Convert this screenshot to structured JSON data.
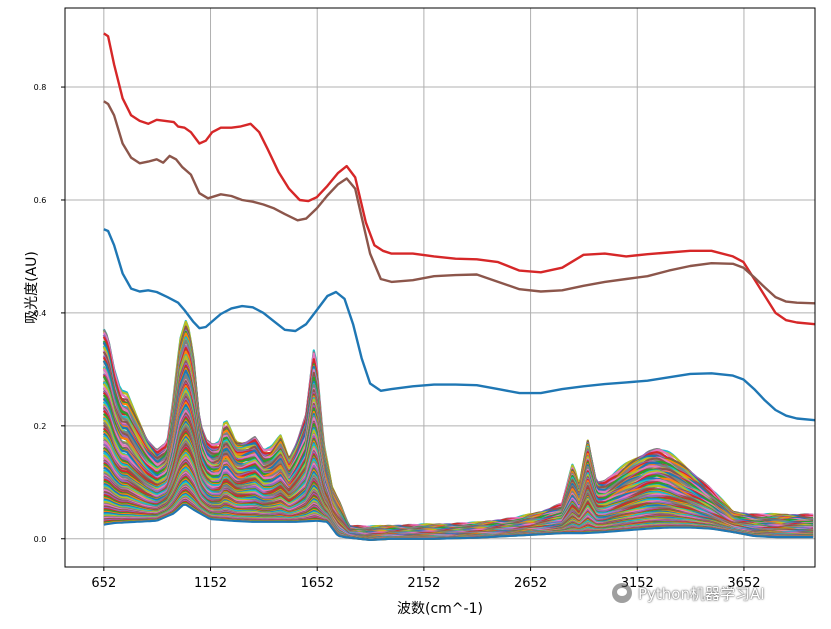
{
  "chart_data": {
    "type": "line",
    "title": "",
    "xlabel": "波数(cm^-1)",
    "ylabel": "吸光度(AU)",
    "xlim": [
      470,
      3985
    ],
    "ylim": [
      -0.05,
      0.94
    ],
    "xticks": [
      652,
      1152,
      1652,
      2152,
      2652,
      3152,
      3652
    ],
    "xtick_labels": [
      "652",
      "1152",
      "1652",
      "2152",
      "2652",
      "3152",
      "3652"
    ],
    "yticks": [
      0.0,
      0.2,
      0.4,
      0.6,
      0.8
    ],
    "ytick_labels": [
      "0.0",
      "0.2",
      "0.4",
      "0.6",
      "0.8"
    ],
    "grid": true,
    "legend": "none",
    "series": [
      {
        "color": "#d62728",
        "points": [
          [
            652,
            0.895
          ],
          [
            672,
            0.89
          ],
          [
            700,
            0.84
          ],
          [
            740,
            0.78
          ],
          [
            780,
            0.75
          ],
          [
            820,
            0.74
          ],
          [
            860,
            0.735
          ],
          [
            900,
            0.742
          ],
          [
            940,
            0.74
          ],
          [
            980,
            0.738
          ],
          [
            1000,
            0.73
          ],
          [
            1030,
            0.728
          ],
          [
            1060,
            0.72
          ],
          [
            1100,
            0.7
          ],
          [
            1130,
            0.705
          ],
          [
            1160,
            0.72
          ],
          [
            1200,
            0.728
          ],
          [
            1250,
            0.728
          ],
          [
            1290,
            0.73
          ],
          [
            1340,
            0.735
          ],
          [
            1380,
            0.72
          ],
          [
            1420,
            0.69
          ],
          [
            1470,
            0.65
          ],
          [
            1520,
            0.62
          ],
          [
            1570,
            0.6
          ],
          [
            1610,
            0.598
          ],
          [
            1650,
            0.605
          ],
          [
            1700,
            0.625
          ],
          [
            1750,
            0.648
          ],
          [
            1790,
            0.66
          ],
          [
            1830,
            0.64
          ],
          [
            1880,
            0.56
          ],
          [
            1920,
            0.52
          ],
          [
            1960,
            0.51
          ],
          [
            2000,
            0.505
          ],
          [
            2100,
            0.505
          ],
          [
            2200,
            0.5
          ],
          [
            2300,
            0.496
          ],
          [
            2400,
            0.495
          ],
          [
            2500,
            0.49
          ],
          [
            2600,
            0.475
          ],
          [
            2700,
            0.472
          ],
          [
            2800,
            0.48
          ],
          [
            2900,
            0.503
          ],
          [
            3000,
            0.505
          ],
          [
            3100,
            0.5
          ],
          [
            3200,
            0.504
          ],
          [
            3300,
            0.507
          ],
          [
            3400,
            0.51
          ],
          [
            3500,
            0.51
          ],
          [
            3600,
            0.5
          ],
          [
            3650,
            0.49
          ],
          [
            3700,
            0.46
          ],
          [
            3750,
            0.43
          ],
          [
            3800,
            0.4
          ],
          [
            3850,
            0.387
          ],
          [
            3900,
            0.383
          ],
          [
            3985,
            0.38
          ]
        ]
      },
      {
        "color": "#8c564b",
        "points": [
          [
            652,
            0.775
          ],
          [
            672,
            0.77
          ],
          [
            700,
            0.75
          ],
          [
            740,
            0.7
          ],
          [
            780,
            0.675
          ],
          [
            820,
            0.665
          ],
          [
            860,
            0.668
          ],
          [
            900,
            0.672
          ],
          [
            930,
            0.666
          ],
          [
            960,
            0.678
          ],
          [
            990,
            0.672
          ],
          [
            1020,
            0.658
          ],
          [
            1060,
            0.645
          ],
          [
            1100,
            0.612
          ],
          [
            1140,
            0.603
          ],
          [
            1200,
            0.61
          ],
          [
            1250,
            0.607
          ],
          [
            1300,
            0.6
          ],
          [
            1350,
            0.597
          ],
          [
            1400,
            0.592
          ],
          [
            1450,
            0.585
          ],
          [
            1500,
            0.575
          ],
          [
            1560,
            0.564
          ],
          [
            1600,
            0.567
          ],
          [
            1650,
            0.585
          ],
          [
            1700,
            0.608
          ],
          [
            1750,
            0.628
          ],
          [
            1790,
            0.638
          ],
          [
            1830,
            0.62
          ],
          [
            1860,
            0.57
          ],
          [
            1900,
            0.505
          ],
          [
            1950,
            0.46
          ],
          [
            2000,
            0.455
          ],
          [
            2100,
            0.458
          ],
          [
            2200,
            0.465
          ],
          [
            2300,
            0.467
          ],
          [
            2400,
            0.468
          ],
          [
            2500,
            0.455
          ],
          [
            2600,
            0.442
          ],
          [
            2700,
            0.438
          ],
          [
            2800,
            0.44
          ],
          [
            2900,
            0.448
          ],
          [
            3000,
            0.455
          ],
          [
            3100,
            0.46
          ],
          [
            3200,
            0.465
          ],
          [
            3300,
            0.475
          ],
          [
            3400,
            0.483
          ],
          [
            3500,
            0.488
          ],
          [
            3600,
            0.487
          ],
          [
            3650,
            0.48
          ],
          [
            3700,
            0.463
          ],
          [
            3750,
            0.445
          ],
          [
            3800,
            0.428
          ],
          [
            3850,
            0.42
          ],
          [
            3900,
            0.418
          ],
          [
            3985,
            0.417
          ]
        ]
      },
      {
        "color": "#1f77b4",
        "points": [
          [
            652,
            0.548
          ],
          [
            672,
            0.545
          ],
          [
            700,
            0.52
          ],
          [
            740,
            0.47
          ],
          [
            780,
            0.443
          ],
          [
            820,
            0.438
          ],
          [
            860,
            0.44
          ],
          [
            900,
            0.437
          ],
          [
            950,
            0.428
          ],
          [
            1000,
            0.418
          ],
          [
            1030,
            0.405
          ],
          [
            1070,
            0.385
          ],
          [
            1100,
            0.373
          ],
          [
            1130,
            0.375
          ],
          [
            1160,
            0.385
          ],
          [
            1200,
            0.398
          ],
          [
            1250,
            0.408
          ],
          [
            1300,
            0.412
          ],
          [
            1350,
            0.41
          ],
          [
            1400,
            0.4
          ],
          [
            1450,
            0.385
          ],
          [
            1500,
            0.37
          ],
          [
            1550,
            0.368
          ],
          [
            1600,
            0.38
          ],
          [
            1650,
            0.405
          ],
          [
            1700,
            0.43
          ],
          [
            1740,
            0.437
          ],
          [
            1780,
            0.425
          ],
          [
            1820,
            0.38
          ],
          [
            1860,
            0.32
          ],
          [
            1900,
            0.275
          ],
          [
            1950,
            0.262
          ],
          [
            2000,
            0.265
          ],
          [
            2100,
            0.27
          ],
          [
            2200,
            0.273
          ],
          [
            2300,
            0.273
          ],
          [
            2400,
            0.272
          ],
          [
            2500,
            0.265
          ],
          [
            2600,
            0.258
          ],
          [
            2700,
            0.258
          ],
          [
            2800,
            0.265
          ],
          [
            2900,
            0.27
          ],
          [
            3000,
            0.274
          ],
          [
            3100,
            0.277
          ],
          [
            3200,
            0.28
          ],
          [
            3300,
            0.286
          ],
          [
            3400,
            0.292
          ],
          [
            3500,
            0.293
          ],
          [
            3600,
            0.289
          ],
          [
            3650,
            0.282
          ],
          [
            3700,
            0.265
          ],
          [
            3750,
            0.245
          ],
          [
            3800,
            0.228
          ],
          [
            3850,
            0.218
          ],
          [
            3900,
            0.213
          ],
          [
            3985,
            0.21
          ]
        ]
      }
    ],
    "band_series": {
      "count": 120,
      "palette": [
        "#1f77b4",
        "#ff7f0e",
        "#2ca02c",
        "#d62728",
        "#9467bd",
        "#8c564b",
        "#e377c2",
        "#7f7f7f",
        "#bcbd22",
        "#17becf"
      ],
      "lower": [
        [
          652,
          0.025
        ],
        [
          700,
          0.028
        ],
        [
          800,
          0.03
        ],
        [
          900,
          0.032
        ],
        [
          980,
          0.045
        ],
        [
          1030,
          0.062
        ],
        [
          1080,
          0.05
        ],
        [
          1150,
          0.035
        ],
        [
          1250,
          0.032
        ],
        [
          1350,
          0.03
        ],
        [
          1450,
          0.03
        ],
        [
          1550,
          0.03
        ],
        [
          1650,
          0.032
        ],
        [
          1700,
          0.03
        ],
        [
          1750,
          0.005
        ],
        [
          1800,
          0.002
        ],
        [
          1900,
          -0.002
        ],
        [
          2000,
          0.0
        ],
        [
          2200,
          0.0
        ],
        [
          2400,
          0.002
        ],
        [
          2600,
          0.006
        ],
        [
          2700,
          0.008
        ],
        [
          2800,
          0.01
        ],
        [
          2900,
          0.01
        ],
        [
          3000,
          0.012
        ],
        [
          3100,
          0.015
        ],
        [
          3200,
          0.018
        ],
        [
          3300,
          0.02
        ],
        [
          3400,
          0.02
        ],
        [
          3500,
          0.018
        ],
        [
          3600,
          0.012
        ],
        [
          3700,
          0.005
        ],
        [
          3800,
          0.003
        ],
        [
          3985,
          0.003
        ]
      ],
      "upper": [
        [
          652,
          0.375
        ],
        [
          670,
          0.36
        ],
        [
          700,
          0.3
        ],
        [
          730,
          0.26
        ],
        [
          760,
          0.255
        ],
        [
          800,
          0.22
        ],
        [
          850,
          0.18
        ],
        [
          900,
          0.155
        ],
        [
          950,
          0.17
        ],
        [
          980,
          0.25
        ],
        [
          1010,
          0.35
        ],
        [
          1040,
          0.39
        ],
        [
          1070,
          0.33
        ],
        [
          1100,
          0.21
        ],
        [
          1130,
          0.175
        ],
        [
          1160,
          0.165
        ],
        [
          1200,
          0.17
        ],
        [
          1220,
          0.21
        ],
        [
          1240,
          0.195
        ],
        [
          1270,
          0.17
        ],
        [
          1300,
          0.17
        ],
        [
          1330,
          0.175
        ],
        [
          1360,
          0.18
        ],
        [
          1400,
          0.155
        ],
        [
          1440,
          0.16
        ],
        [
          1480,
          0.18
        ],
        [
          1520,
          0.14
        ],
        [
          1560,
          0.175
        ],
        [
          1600,
          0.22
        ],
        [
          1640,
          0.345
        ],
        [
          1680,
          0.17
        ],
        [
          1720,
          0.09
        ],
        [
          1760,
          0.06
        ],
        [
          1800,
          0.02
        ],
        [
          1900,
          0.018
        ],
        [
          2000,
          0.02
        ],
        [
          2200,
          0.022
        ],
        [
          2400,
          0.025
        ],
        [
          2600,
          0.035
        ],
        [
          2700,
          0.045
        ],
        [
          2800,
          0.06
        ],
        [
          2850,
          0.13
        ],
        [
          2880,
          0.09
        ],
        [
          2920,
          0.175
        ],
        [
          2960,
          0.1
        ],
        [
          3000,
          0.1
        ],
        [
          3100,
          0.13
        ],
        [
          3200,
          0.155
        ],
        [
          3250,
          0.158
        ],
        [
          3300,
          0.15
        ],
        [
          3400,
          0.12
        ],
        [
          3500,
          0.085
        ],
        [
          3600,
          0.045
        ],
        [
          3700,
          0.04
        ],
        [
          3800,
          0.04
        ],
        [
          3985,
          0.04
        ]
      ]
    }
  },
  "watermark": {
    "text": "Python机器学习AI"
  }
}
